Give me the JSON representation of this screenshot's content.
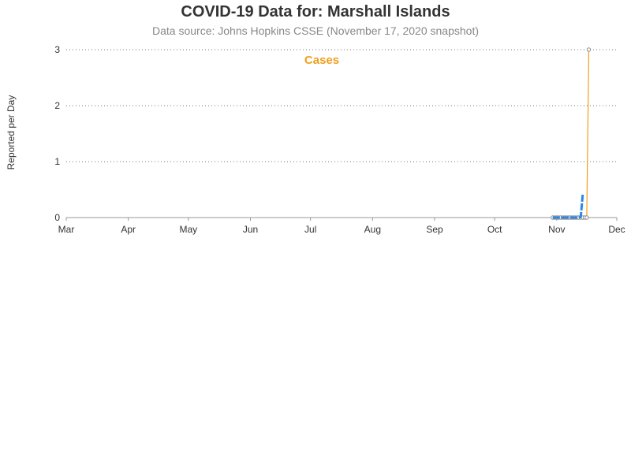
{
  "colors": {
    "cases_line": "#f0a01e",
    "avg_line": "#2e86e8",
    "marker": "#888888",
    "axis": "#999999",
    "grid": "#777777"
  },
  "chart_data": {
    "type": "line",
    "title": "COVID-19 Data for: Marshall Islands",
    "subtitle": "Data source: Johns Hopkins CSSE (November 17, 2020 snapshot)",
    "ylabel": "Reported per Day",
    "series_label": "Cases",
    "ylim": [
      0,
      3
    ],
    "xlim": [
      "2020-03-01",
      "2020-12-01"
    ],
    "grid": "horizontal dotted",
    "y_ticks": [
      0,
      1,
      2,
      3
    ],
    "x_ticks": [
      {
        "date": "2020-03-01",
        "label": "Mar"
      },
      {
        "date": "2020-04-01",
        "label": "Apr"
      },
      {
        "date": "2020-05-01",
        "label": "May"
      },
      {
        "date": "2020-06-01",
        "label": "Jun"
      },
      {
        "date": "2020-07-01",
        "label": "Jul"
      },
      {
        "date": "2020-08-01",
        "label": "Aug"
      },
      {
        "date": "2020-09-01",
        "label": "Sep"
      },
      {
        "date": "2020-10-01",
        "label": "Oct"
      },
      {
        "date": "2020-11-01",
        "label": "Nov"
      },
      {
        "date": "2020-12-01",
        "label": "Dec"
      }
    ],
    "series": [
      {
        "kind": "daily",
        "points": [
          {
            "x": "2020-10-30",
            "y": 0
          },
          {
            "x": "2020-10-31",
            "y": 0
          },
          {
            "x": "2020-11-01",
            "y": 0
          },
          {
            "x": "2020-11-02",
            "y": 0
          },
          {
            "x": "2020-11-03",
            "y": 0
          },
          {
            "x": "2020-11-04",
            "y": 0
          },
          {
            "x": "2020-11-05",
            "y": 0
          },
          {
            "x": "2020-11-06",
            "y": 0
          },
          {
            "x": "2020-11-07",
            "y": 0
          },
          {
            "x": "2020-11-08",
            "y": 0
          },
          {
            "x": "2020-11-09",
            "y": 0
          },
          {
            "x": "2020-11-10",
            "y": 0
          },
          {
            "x": "2020-11-11",
            "y": 0
          },
          {
            "x": "2020-11-12",
            "y": 0
          },
          {
            "x": "2020-11-13",
            "y": 0
          },
          {
            "x": "2020-11-14",
            "y": 0
          },
          {
            "x": "2020-11-15",
            "y": 0
          },
          {
            "x": "2020-11-16",
            "y": 0
          },
          {
            "x": "2020-11-17",
            "y": 3
          }
        ]
      },
      {
        "kind": "average",
        "points": [
          {
            "x": "2020-10-30",
            "y": 0
          },
          {
            "x": "2020-11-01",
            "y": 0
          },
          {
            "x": "2020-11-03",
            "y": 0
          },
          {
            "x": "2020-11-05",
            "y": 0
          },
          {
            "x": "2020-11-07",
            "y": 0
          },
          {
            "x": "2020-11-09",
            "y": 0
          },
          {
            "x": "2020-11-11",
            "y": 0
          },
          {
            "x": "2020-11-13",
            "y": 0.01
          },
          {
            "x": "2020-11-14",
            "y": 0.43
          }
        ]
      }
    ]
  }
}
